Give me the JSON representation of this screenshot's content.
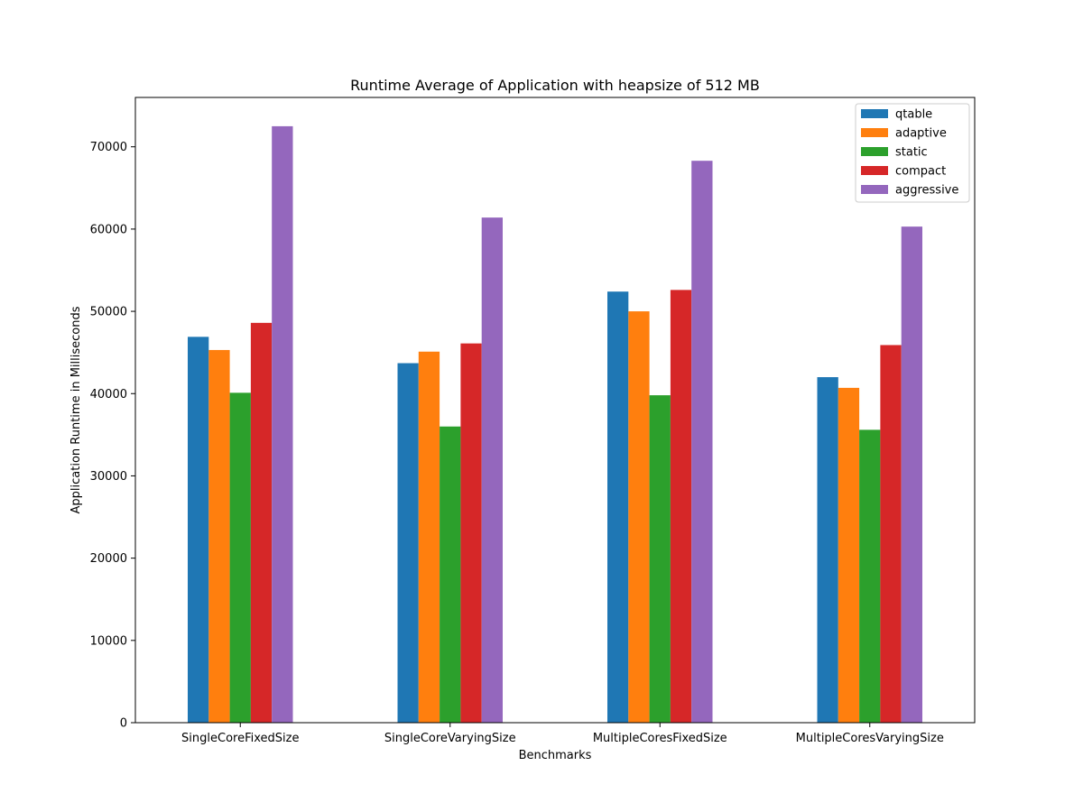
{
  "chart_data": {
    "type": "bar",
    "title": "Runtime Average of Application with heapsize of 512 MB",
    "xlabel": "Benchmarks",
    "ylabel": "Application Runtime in Milliseconds",
    "categories": [
      "SingleCoreFixedSize",
      "SingleCoreVaryingSize",
      "MultipleCoresFixedSize",
      "MultipleCoresVaryingSize"
    ],
    "ylim": [
      0,
      76000
    ],
    "yticks": [
      0,
      10000,
      20000,
      30000,
      40000,
      50000,
      60000,
      70000
    ],
    "ytick_labels": [
      "0",
      "10000",
      "20000",
      "30000",
      "40000",
      "50000",
      "60000",
      "70000"
    ],
    "grid": false,
    "legend_position": "top-right",
    "series": [
      {
        "name": "qtable",
        "color": "#1f77b4",
        "values": [
          46900,
          43700,
          52400,
          42000
        ]
      },
      {
        "name": "adaptive",
        "color": "#ff7f0e",
        "values": [
          45300,
          45100,
          50000,
          40700
        ]
      },
      {
        "name": "static",
        "color": "#2ca02c",
        "values": [
          40100,
          36000,
          39800,
          35600
        ]
      },
      {
        "name": "compact",
        "color": "#d62728",
        "values": [
          48600,
          46100,
          52600,
          45900
        ]
      },
      {
        "name": "aggressive",
        "color": "#9467bd",
        "values": [
          72500,
          61400,
          68300,
          60300
        ]
      }
    ]
  }
}
